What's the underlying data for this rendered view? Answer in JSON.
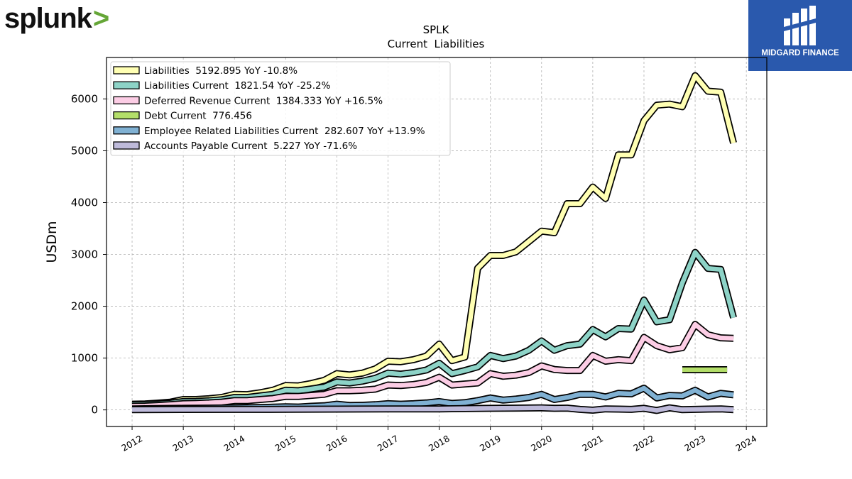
{
  "logos": {
    "left_text": "splunk",
    "left_symbol": ">",
    "right_text": "MIDGARD FINANCE"
  },
  "colors": {
    "liabilities": "#ffffb3",
    "liabilities_current": "#8dd3c7",
    "deferred_revenue": "#fccde5",
    "debt_current": "#b3de69",
    "employee_related": "#80b1d3",
    "accounts_payable": "#bebada",
    "splunk_chevron": "#65a637",
    "midgard_bg": "#2a59ad"
  },
  "chart_data": {
    "type": "line",
    "title": "SPLK",
    "subtitle": "Current  Liabilities",
    "ylabel": "USDm",
    "xlabel": "",
    "xlim": [
      2011.5,
      2024.4
    ],
    "ylim": [
      -320,
      6800
    ],
    "xticks": [
      "2012",
      "2013",
      "2014",
      "2015",
      "2016",
      "2017",
      "2018",
      "2019",
      "2020",
      "2021",
      "2022",
      "2023",
      "2024"
    ],
    "yticks": [
      "0",
      "1000",
      "2000",
      "3000",
      "4000",
      "5000",
      "6000"
    ],
    "grid": true,
    "legend_position": "top-left",
    "series": [
      {
        "name": "Liabilities  5192.895 YoY -10.8%",
        "color_key": "liabilities",
        "points": [
          [
            2012.0,
            110
          ],
          [
            2012.25,
            115
          ],
          [
            2012.5,
            130
          ],
          [
            2012.75,
            150
          ],
          [
            2013.0,
            200
          ],
          [
            2013.25,
            200
          ],
          [
            2013.5,
            215
          ],
          [
            2013.75,
            240
          ],
          [
            2014.0,
            300
          ],
          [
            2014.25,
            295
          ],
          [
            2014.5,
            330
          ],
          [
            2014.75,
            380
          ],
          [
            2015.0,
            470
          ],
          [
            2015.25,
            465
          ],
          [
            2015.5,
            510
          ],
          [
            2015.75,
            570
          ],
          [
            2016.0,
            700
          ],
          [
            2016.25,
            675
          ],
          [
            2016.5,
            710
          ],
          [
            2016.75,
            790
          ],
          [
            2017.0,
            940
          ],
          [
            2017.25,
            930
          ],
          [
            2017.5,
            970
          ],
          [
            2017.75,
            1040
          ],
          [
            2018.0,
            1270
          ],
          [
            2018.25,
            950
          ],
          [
            2018.5,
            1020
          ],
          [
            2018.75,
            2730
          ],
          [
            2019.0,
            2980
          ],
          [
            2019.25,
            2980
          ],
          [
            2019.5,
            3050
          ],
          [
            2019.75,
            3250
          ],
          [
            2020.0,
            3450
          ],
          [
            2020.25,
            3420
          ],
          [
            2020.5,
            3980
          ],
          [
            2020.75,
            3980
          ],
          [
            2021.0,
            4300
          ],
          [
            2021.25,
            4080
          ],
          [
            2021.5,
            4920
          ],
          [
            2021.75,
            4920
          ],
          [
            2022.0,
            5580
          ],
          [
            2022.25,
            5880
          ],
          [
            2022.5,
            5900
          ],
          [
            2022.75,
            5850
          ],
          [
            2023.0,
            6450
          ],
          [
            2023.25,
            6150
          ],
          [
            2023.5,
            6130
          ],
          [
            2023.75,
            5150
          ]
        ]
      },
      {
        "name": "Liabilities Current  1821.54 YoY -25.2%",
        "color_key": "liabilities_current",
        "points": [
          [
            2012.0,
            100
          ],
          [
            2012.25,
            105
          ],
          [
            2012.5,
            115
          ],
          [
            2012.75,
            130
          ],
          [
            2013.0,
            160
          ],
          [
            2013.25,
            165
          ],
          [
            2013.5,
            175
          ],
          [
            2013.75,
            195
          ],
          [
            2014.0,
            240
          ],
          [
            2014.25,
            240
          ],
          [
            2014.5,
            270
          ],
          [
            2014.75,
            300
          ],
          [
            2015.0,
            380
          ],
          [
            2015.25,
            370
          ],
          [
            2015.5,
            405
          ],
          [
            2015.75,
            440
          ],
          [
            2016.0,
            540
          ],
          [
            2016.25,
            520
          ],
          [
            2016.5,
            555
          ],
          [
            2016.75,
            610
          ],
          [
            2017.0,
            710
          ],
          [
            2017.25,
            690
          ],
          [
            2017.5,
            720
          ],
          [
            2017.75,
            770
          ],
          [
            2018.0,
            900
          ],
          [
            2018.25,
            700
          ],
          [
            2018.5,
            760
          ],
          [
            2018.75,
            830
          ],
          [
            2019.0,
            1050
          ],
          [
            2019.25,
            990
          ],
          [
            2019.5,
            1040
          ],
          [
            2019.75,
            1150
          ],
          [
            2020.0,
            1330
          ],
          [
            2020.25,
            1150
          ],
          [
            2020.5,
            1240
          ],
          [
            2020.75,
            1270
          ],
          [
            2021.0,
            1550
          ],
          [
            2021.25,
            1410
          ],
          [
            2021.5,
            1570
          ],
          [
            2021.75,
            1560
          ],
          [
            2022.0,
            2120
          ],
          [
            2022.25,
            1700
          ],
          [
            2022.5,
            1740
          ],
          [
            2022.75,
            2450
          ],
          [
            2023.0,
            3040
          ],
          [
            2023.25,
            2730
          ],
          [
            2023.5,
            2710
          ],
          [
            2023.75,
            1780
          ]
        ]
      },
      {
        "name": "Deferred Revenue Current  1384.333 YoY +16.5%",
        "color_key": "deferred_revenue",
        "points": [
          [
            2012.0,
            70
          ],
          [
            2012.25,
            75
          ],
          [
            2012.5,
            85
          ],
          [
            2012.75,
            100
          ],
          [
            2013.0,
            120
          ],
          [
            2013.25,
            125
          ],
          [
            2013.5,
            135
          ],
          [
            2013.75,
            150
          ],
          [
            2014.0,
            180
          ],
          [
            2014.25,
            180
          ],
          [
            2014.5,
            200
          ],
          [
            2014.75,
            220
          ],
          [
            2015.0,
            260
          ],
          [
            2015.25,
            260
          ],
          [
            2015.5,
            280
          ],
          [
            2015.75,
            300
          ],
          [
            2016.0,
            370
          ],
          [
            2016.25,
            370
          ],
          [
            2016.5,
            380
          ],
          [
            2016.75,
            400
          ],
          [
            2017.0,
            480
          ],
          [
            2017.25,
            470
          ],
          [
            2017.5,
            490
          ],
          [
            2017.75,
            530
          ],
          [
            2018.0,
            630
          ],
          [
            2018.25,
            480
          ],
          [
            2018.5,
            500
          ],
          [
            2018.75,
            520
          ],
          [
            2019.0,
            700
          ],
          [
            2019.25,
            650
          ],
          [
            2019.5,
            670
          ],
          [
            2019.75,
            720
          ],
          [
            2020.0,
            850
          ],
          [
            2020.25,
            780
          ],
          [
            2020.5,
            760
          ],
          [
            2020.75,
            760
          ],
          [
            2021.0,
            1050
          ],
          [
            2021.25,
            940
          ],
          [
            2021.5,
            970
          ],
          [
            2021.75,
            950
          ],
          [
            2022.0,
            1400
          ],
          [
            2022.25,
            1240
          ],
          [
            2022.5,
            1160
          ],
          [
            2022.75,
            1200
          ],
          [
            2023.0,
            1650
          ],
          [
            2023.25,
            1450
          ],
          [
            2023.5,
            1390
          ],
          [
            2023.75,
            1380
          ]
        ]
      },
      {
        "name": "Debt Current  776.456",
        "color_key": "debt_current",
        "points": [
          [
            2022.75,
            776
          ],
          [
            2023.0,
            776
          ],
          [
            2023.25,
            776
          ],
          [
            2023.5,
            776
          ],
          [
            2023.625,
            776
          ]
        ]
      },
      {
        "name": "Employee Related Liabilities Current  282.607 YoY +13.9%",
        "color_key": "employee_related",
        "points": [
          [
            2012.0,
            20
          ],
          [
            2012.5,
            25
          ],
          [
            2013.0,
            30
          ],
          [
            2013.5,
            35
          ],
          [
            2014.0,
            40
          ],
          [
            2014.5,
            45
          ],
          [
            2015.0,
            60
          ],
          [
            2015.25,
            55
          ],
          [
            2015.5,
            70
          ],
          [
            2015.75,
            80
          ],
          [
            2016.0,
            110
          ],
          [
            2016.25,
            85
          ],
          [
            2016.5,
            90
          ],
          [
            2016.75,
            100
          ],
          [
            2017.0,
            120
          ],
          [
            2017.25,
            110
          ],
          [
            2017.5,
            120
          ],
          [
            2017.75,
            135
          ],
          [
            2018.0,
            160
          ],
          [
            2018.25,
            125
          ],
          [
            2018.5,
            140
          ],
          [
            2018.75,
            180
          ],
          [
            2019.0,
            230
          ],
          [
            2019.25,
            190
          ],
          [
            2019.5,
            210
          ],
          [
            2019.75,
            240
          ],
          [
            2020.0,
            300
          ],
          [
            2020.25,
            200
          ],
          [
            2020.5,
            240
          ],
          [
            2020.75,
            300
          ],
          [
            2021.0,
            300
          ],
          [
            2021.25,
            250
          ],
          [
            2021.5,
            320
          ],
          [
            2021.75,
            310
          ],
          [
            2022.0,
            420
          ],
          [
            2022.25,
            230
          ],
          [
            2022.5,
            280
          ],
          [
            2022.75,
            270
          ],
          [
            2023.0,
            380
          ],
          [
            2023.25,
            250
          ],
          [
            2023.5,
            320
          ],
          [
            2023.75,
            290
          ]
        ]
      },
      {
        "name": "Accounts Payable Current  5.227 YoY -71.6%",
        "color_key": "accounts_payable",
        "points": [
          [
            2012.0,
            5
          ],
          [
            2013.0,
            8
          ],
          [
            2014.0,
            10
          ],
          [
            2015.0,
            12
          ],
          [
            2016.0,
            15
          ],
          [
            2017.0,
            18
          ],
          [
            2018.0,
            20
          ],
          [
            2018.5,
            25
          ],
          [
            2019.0,
            30
          ],
          [
            2019.5,
            35
          ],
          [
            2020.0,
            40
          ],
          [
            2020.25,
            30
          ],
          [
            2020.5,
            35
          ],
          [
            2020.75,
            10
          ],
          [
            2021.0,
            -5
          ],
          [
            2021.25,
            20
          ],
          [
            2021.5,
            15
          ],
          [
            2021.75,
            10
          ],
          [
            2022.0,
            30
          ],
          [
            2022.25,
            -10
          ],
          [
            2022.5,
            40
          ],
          [
            2022.75,
            5
          ],
          [
            2023.0,
            10
          ],
          [
            2023.25,
            15
          ],
          [
            2023.5,
            20
          ],
          [
            2023.75,
            5
          ]
        ]
      }
    ]
  }
}
